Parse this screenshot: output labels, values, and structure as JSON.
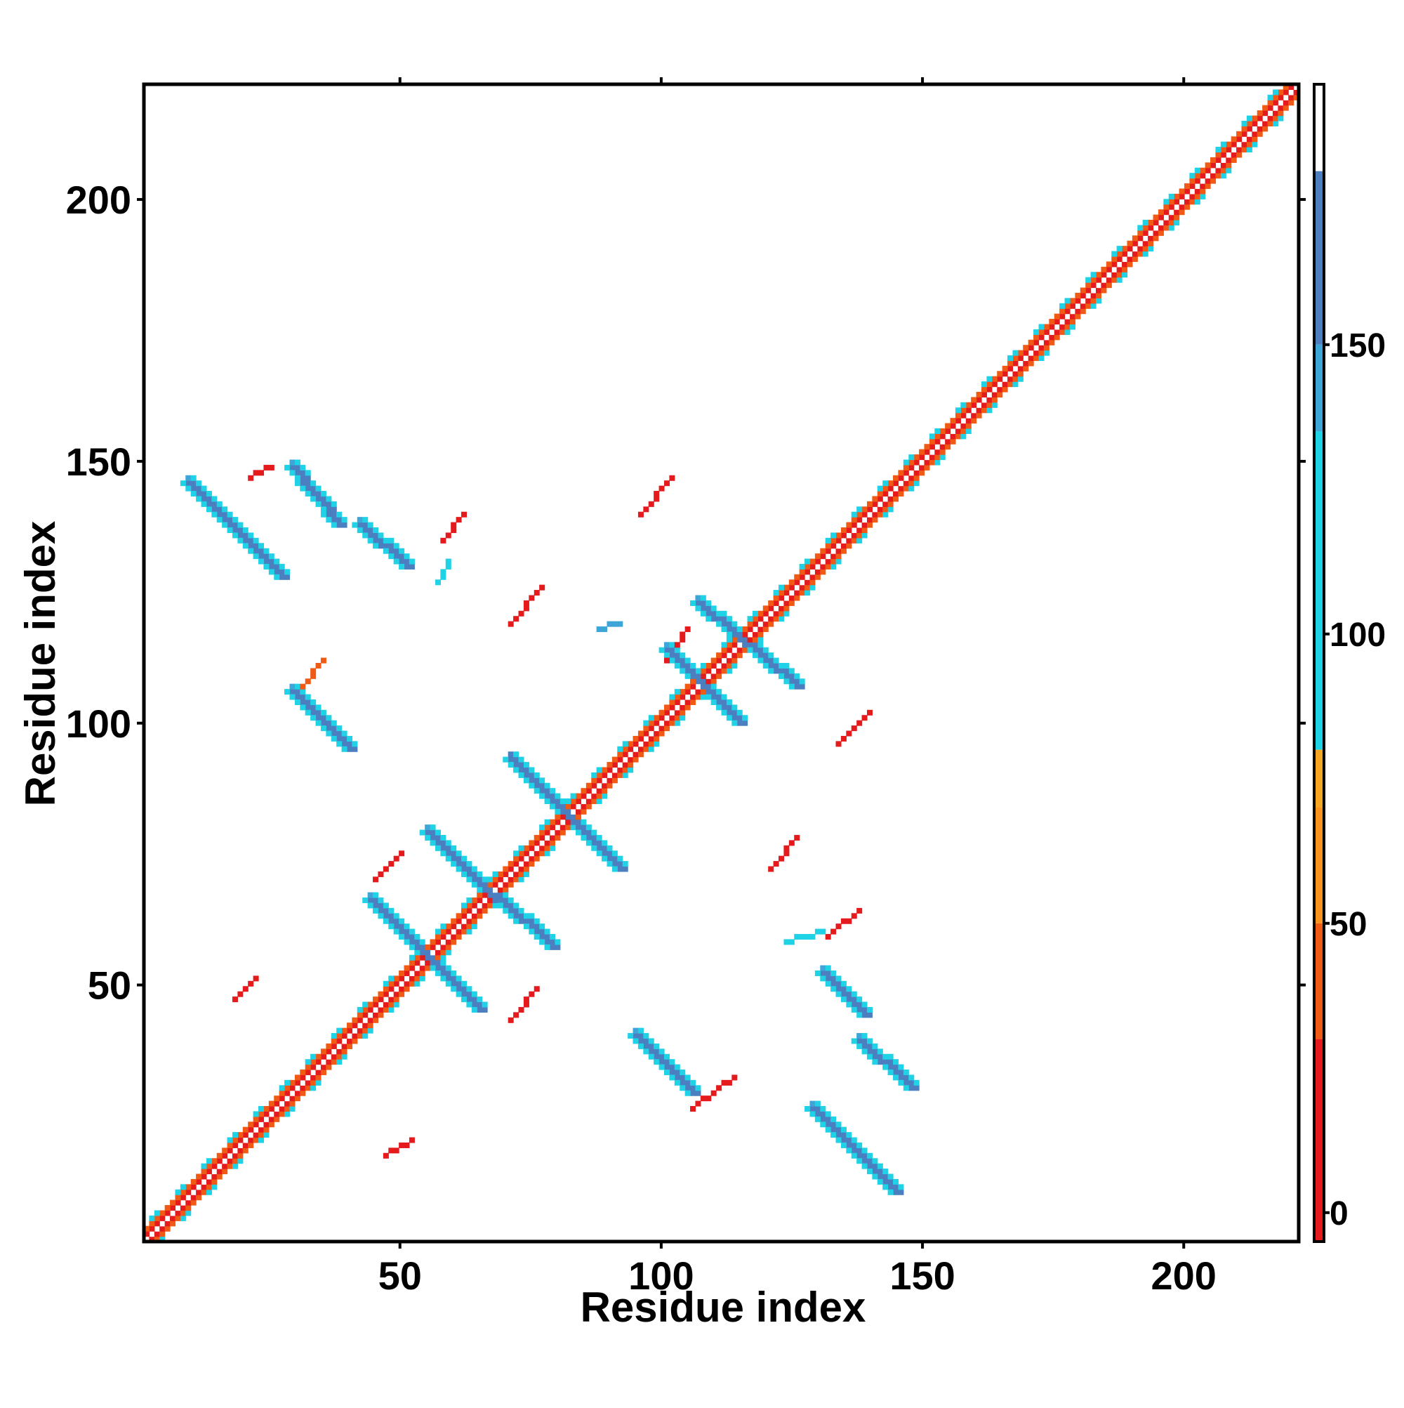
{
  "chart_data": {
    "type": "heatmap",
    "title": "",
    "xlabel": "Residue index",
    "ylabel": "Residue index",
    "xlim": [
      1,
      222
    ],
    "ylim": [
      1,
      222
    ],
    "x_ticks": [
      50,
      100,
      150,
      200
    ],
    "y_ticks": [
      50,
      100,
      150,
      200
    ],
    "grid": false,
    "colorbar": {
      "ticks": [
        0,
        50,
        100,
        150
      ],
      "range": [
        -5,
        195
      ],
      "segments": [
        {
          "from": -5,
          "to": 30,
          "color": "#e41a1c"
        },
        {
          "from": 30,
          "to": 50,
          "color": "#f05a14"
        },
        {
          "from": 50,
          "to": 70,
          "color": "#f7931e"
        },
        {
          "from": 70,
          "to": 80,
          "color": "#f5a623"
        },
        {
          "from": 80,
          "to": 135,
          "color": "#1fd2e6"
        },
        {
          "from": 135,
          "to": 150,
          "color": "#3ea5d8"
        },
        {
          "from": 150,
          "to": 180,
          "color": "#4b7fc0"
        },
        {
          "from": 180,
          "to": 195,
          "color": "#ffffff"
        }
      ]
    },
    "diagonal": {
      "from": 1,
      "to": 222,
      "inner_value": 10,
      "band_value": 40,
      "edge_value": 95
    },
    "contacts": [
      {
        "x0": 9,
        "y0": 146,
        "x1": 27,
        "y1": 128,
        "value": 160,
        "edge_value": 95
      },
      {
        "x0": 29,
        "y0": 149,
        "x1": 38,
        "y1": 138,
        "value": 160,
        "edge_value": 95
      },
      {
        "x0": 42,
        "y0": 138,
        "x1": 51,
        "y1": 130,
        "value": 160,
        "edge_value": 95
      },
      {
        "x0": 29,
        "y0": 106,
        "x1": 40,
        "y1": 95,
        "value": 160,
        "edge_value": 95
      },
      {
        "x0": 55,
        "y0": 79,
        "x1": 68,
        "y1": 66,
        "value": 160,
        "edge_value": 95
      },
      {
        "x0": 71,
        "y0": 93,
        "x1": 92,
        "y1": 72,
        "value": 165,
        "edge_value": 95
      },
      {
        "x0": 44,
        "y0": 66,
        "x1": 65,
        "y1": 45,
        "value": 160,
        "edge_value": 95
      },
      {
        "x0": 68,
        "y0": 67,
        "x1": 79,
        "y1": 57,
        "value": 160,
        "edge_value": 95
      },
      {
        "x0": 101,
        "y0": 114,
        "x1": 115,
        "y1": 100,
        "value": 160,
        "edge_value": 95
      },
      {
        "x0": 107,
        "y0": 123,
        "x1": 126,
        "y1": 107,
        "value": 160,
        "edge_value": 95
      },
      {
        "x0": 95,
        "y0": 40,
        "x1": 106,
        "y1": 29,
        "value": 160,
        "edge_value": 95
      },
      {
        "x0": 131,
        "y0": 52,
        "x1": 139,
        "y1": 44,
        "value": 160,
        "edge_value": 95
      },
      {
        "x0": 138,
        "y0": 39,
        "x1": 148,
        "y1": 30,
        "value": 160,
        "edge_value": 95
      },
      {
        "x0": 129,
        "y0": 26,
        "x1": 145,
        "y1": 10,
        "value": 160,
        "edge_value": 95
      }
    ],
    "scattered": [
      {
        "x0": 21,
        "y0": 147,
        "x1": 25,
        "y1": 149,
        "value": 20
      },
      {
        "x0": 58,
        "y0": 135,
        "x1": 62,
        "y1": 140,
        "value": 20
      },
      {
        "x0": 57,
        "y0": 127,
        "x1": 59,
        "y1": 131,
        "value": 110
      },
      {
        "x0": 71,
        "y0": 119,
        "x1": 77,
        "y1": 126,
        "value": 20
      },
      {
        "x0": 96,
        "y0": 140,
        "x1": 102,
        "y1": 147,
        "value": 20
      },
      {
        "x0": 31,
        "y0": 107,
        "x1": 35,
        "y1": 112,
        "value": 40
      },
      {
        "x0": 101,
        "y0": 112,
        "x1": 105,
        "y1": 118,
        "value": 20
      },
      {
        "x0": 88,
        "y0": 118,
        "x1": 92,
        "y1": 119,
        "value": 140
      },
      {
        "x0": 134,
        "y0": 96,
        "x1": 140,
        "y1": 102,
        "value": 20
      },
      {
        "x0": 121,
        "y0": 72,
        "x1": 126,
        "y1": 78,
        "value": 20
      },
      {
        "x0": 45,
        "y0": 70,
        "x1": 50,
        "y1": 75,
        "value": 20
      },
      {
        "x0": 18,
        "y0": 47,
        "x1": 22,
        "y1": 51,
        "value": 20
      },
      {
        "x0": 71,
        "y0": 43,
        "x1": 76,
        "y1": 49,
        "value": 20
      },
      {
        "x0": 106,
        "y0": 26,
        "x1": 114,
        "y1": 32,
        "value": 20
      },
      {
        "x0": 47,
        "y0": 17,
        "x1": 52,
        "y1": 20,
        "value": 20
      },
      {
        "x0": 132,
        "y0": 59,
        "x1": 138,
        "y1": 64,
        "value": 20
      },
      {
        "x0": 124,
        "y0": 58,
        "x1": 131,
        "y1": 60,
        "value": 110
      }
    ]
  }
}
